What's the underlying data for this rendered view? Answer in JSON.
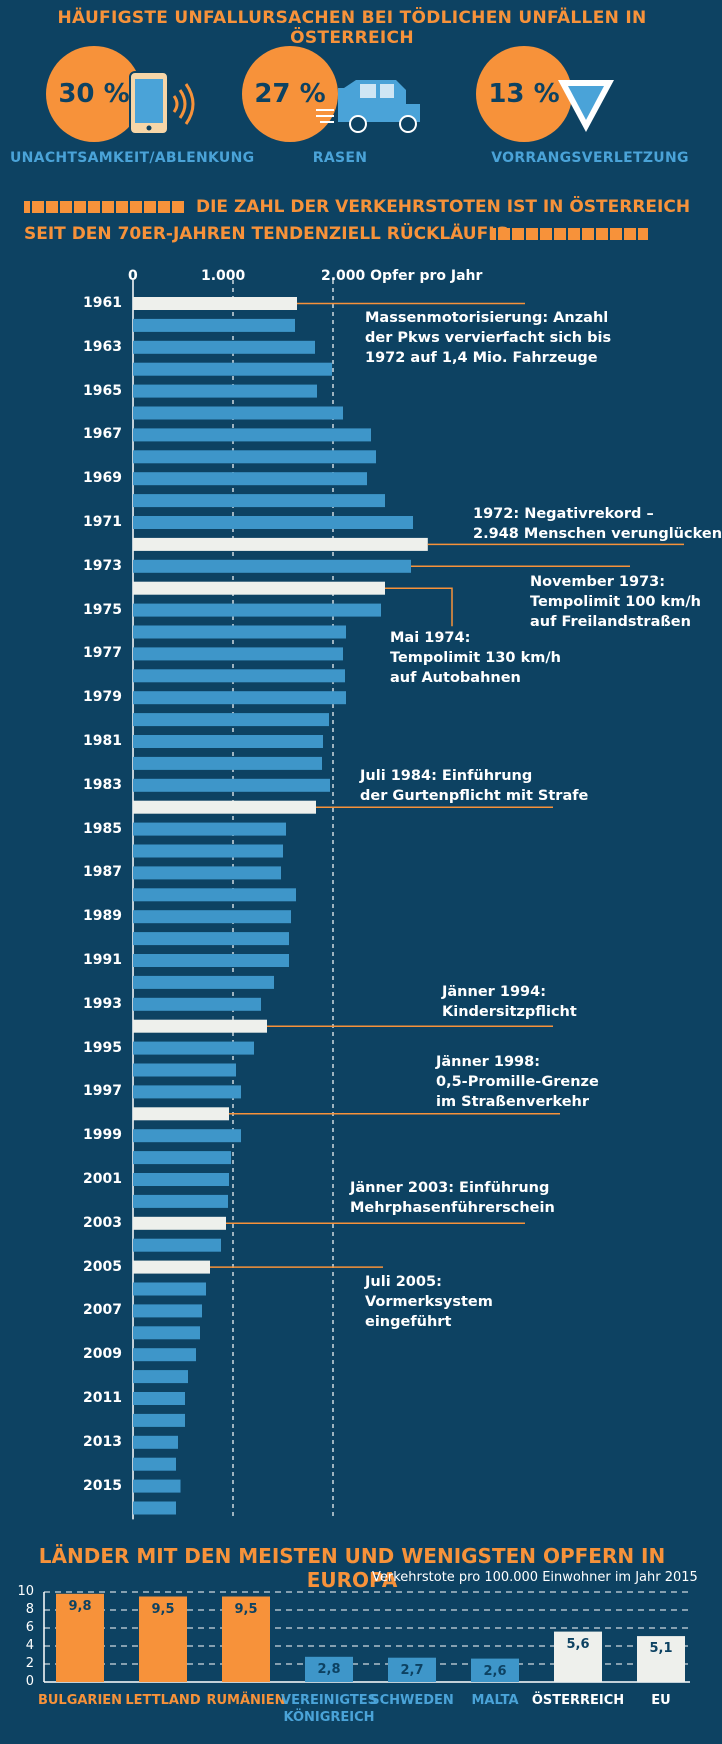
{
  "colors": {
    "background": "#0d4262",
    "orange": "#f7923a",
    "bar_blue": "#3e96c9",
    "highlight_bar": "#eef0ec",
    "light_blue_text": "#4aa3d8"
  },
  "section1": {
    "title": "HÄUFIGSTE UNFALLURSACHEN BEI TÖDLICHEN UNFÄLLEN IN ÖSTERREICH",
    "stats": [
      {
        "value": "30 %",
        "label": "UNACHTSAMKEIT/ABLENKUNG",
        "icon": "smartphone-icon"
      },
      {
        "value": "27 %",
        "label": "RASEN",
        "icon": "speeding-car-icon"
      },
      {
        "value": "13 %",
        "label": "VORRANGSVERLETZUNG",
        "icon": "yield-sign-icon"
      }
    ]
  },
  "section2": {
    "headline_line1": "DIE ZAHL DER VERKEHRSTOTEN IST IN ÖSTERREICH",
    "headline_line2": "SEIT DEN 70ER-JAHREN TENDENZIELL RÜCKLÄUFIG",
    "x_ticks": [
      "0",
      "1.000",
      "2.000 Opfer pro Jahr"
    ],
    "annotations": [
      {
        "lines": [
          "Massenmotorisierung: Anzahl",
          "der Pkws vervierfacht sich bis",
          "1972 auf 1,4 Mio. Fahrzeuge"
        ]
      },
      {
        "lines": [
          "1972: Negativrekord –",
          "2.948 Menschen verunglücken"
        ]
      },
      {
        "lines": [
          "November 1973:",
          "Tempolimit 100 km/h",
          "auf Freilandstraßen"
        ]
      },
      {
        "lines": [
          "Mai 1974:",
          "Tempolimit 130 km/h",
          "auf Autobahnen"
        ]
      },
      {
        "lines": [
          "Juli 1984: Einführung",
          "der Gurtenpflicht mit Strafe"
        ]
      },
      {
        "lines": [
          "Jänner 1994:",
          "Kindersitzpflicht"
        ]
      },
      {
        "lines": [
          "Jänner 1998:",
          "0,5-Promille-Grenze",
          "im Straßenverkehr"
        ]
      },
      {
        "lines": [
          "Jänner 2003: Einführung",
          "Mehrphasenführerschein"
        ]
      },
      {
        "lines": [
          "Juli 2005:",
          "Vormerksystem",
          "eingeführt"
        ]
      }
    ]
  },
  "section3": {
    "title": "LÄNDER MIT DEN MEISTEN UND WENIGSTEN OPFERN IN EUROPA",
    "subtitle": "Verkehrstote pro 100.000 Einwohner im Jahr 2015",
    "y_ticks": [
      "0",
      "2",
      "4",
      "6",
      "8",
      "10"
    ]
  },
  "chart_data": [
    {
      "type": "bar",
      "orientation": "horizontal",
      "x": [
        1961,
        1962,
        1963,
        1964,
        1965,
        1966,
        1967,
        1968,
        1969,
        1970,
        1971,
        1972,
        1973,
        1974,
        1975,
        1976,
        1977,
        1978,
        1979,
        1980,
        1981,
        1982,
        1983,
        1984,
        1985,
        1986,
        1987,
        1988,
        1989,
        1990,
        1991,
        1992,
        1993,
        1994,
        1995,
        1996,
        1997,
        1998,
        1999,
        2000,
        2001,
        2002,
        2003,
        2004,
        2005,
        2006,
        2007,
        2008,
        2009,
        2010,
        2011,
        2012,
        2013,
        2014,
        2015,
        2016
      ],
      "values": [
        1640,
        1620,
        1820,
        1990,
        1840,
        2100,
        2380,
        2430,
        2340,
        2520,
        2800,
        2948,
        2780,
        2520,
        2480,
        2130,
        2100,
        2120,
        2130,
        1960,
        1900,
        1890,
        1970,
        1830,
        1530,
        1500,
        1480,
        1630,
        1580,
        1560,
        1560,
        1410,
        1280,
        1340,
        1210,
        1030,
        1080,
        960,
        1080,
        980,
        960,
        950,
        930,
        880,
        770,
        730,
        690,
        670,
        630,
        550,
        520,
        520,
        450,
        430,
        475,
        430
      ],
      "year_labels": [
        "1961",
        "1963",
        "1965",
        "1967",
        "1969",
        "1971",
        "1973",
        "1975",
        "1977",
        "1979",
        "1981",
        "1983",
        "1985",
        "1987",
        "1989",
        "1991",
        "1993",
        "1995",
        "1997",
        "1999",
        "2001",
        "2003",
        "2005",
        "2007",
        "2009",
        "2011",
        "2013",
        "2015"
      ],
      "highlighted_years": [
        1961,
        1972,
        1974,
        1984,
        1994,
        1998,
        2003,
        2005
      ],
      "xlim": [
        0,
        3000
      ],
      "xlabel": "Opfer pro Jahr"
    },
    {
      "type": "bar",
      "categories": [
        [
          "BULGARIEN"
        ],
        [
          "LETTLAND"
        ],
        [
          "RUMÄNIEN"
        ],
        [
          "VEREINIGTES",
          "KÖNIGREICH"
        ],
        [
          "SCHWEDEN"
        ],
        [
          "MALTA"
        ],
        [
          "ÖSTERREICH"
        ],
        [
          "EU"
        ]
      ],
      "values": [
        9.8,
        9.5,
        9.5,
        2.8,
        2.7,
        2.6,
        5.6,
        5.1
      ],
      "value_labels": [
        "9,8",
        "9,5",
        "9,5",
        "2,8",
        "2,7",
        "2,6",
        "5,6",
        "5,1"
      ],
      "groups": [
        "meiste",
        "meiste",
        "meiste",
        "wenigste",
        "wenigste",
        "wenigste",
        "vergleich",
        "vergleich"
      ],
      "ylim": [
        0,
        10
      ]
    }
  ]
}
